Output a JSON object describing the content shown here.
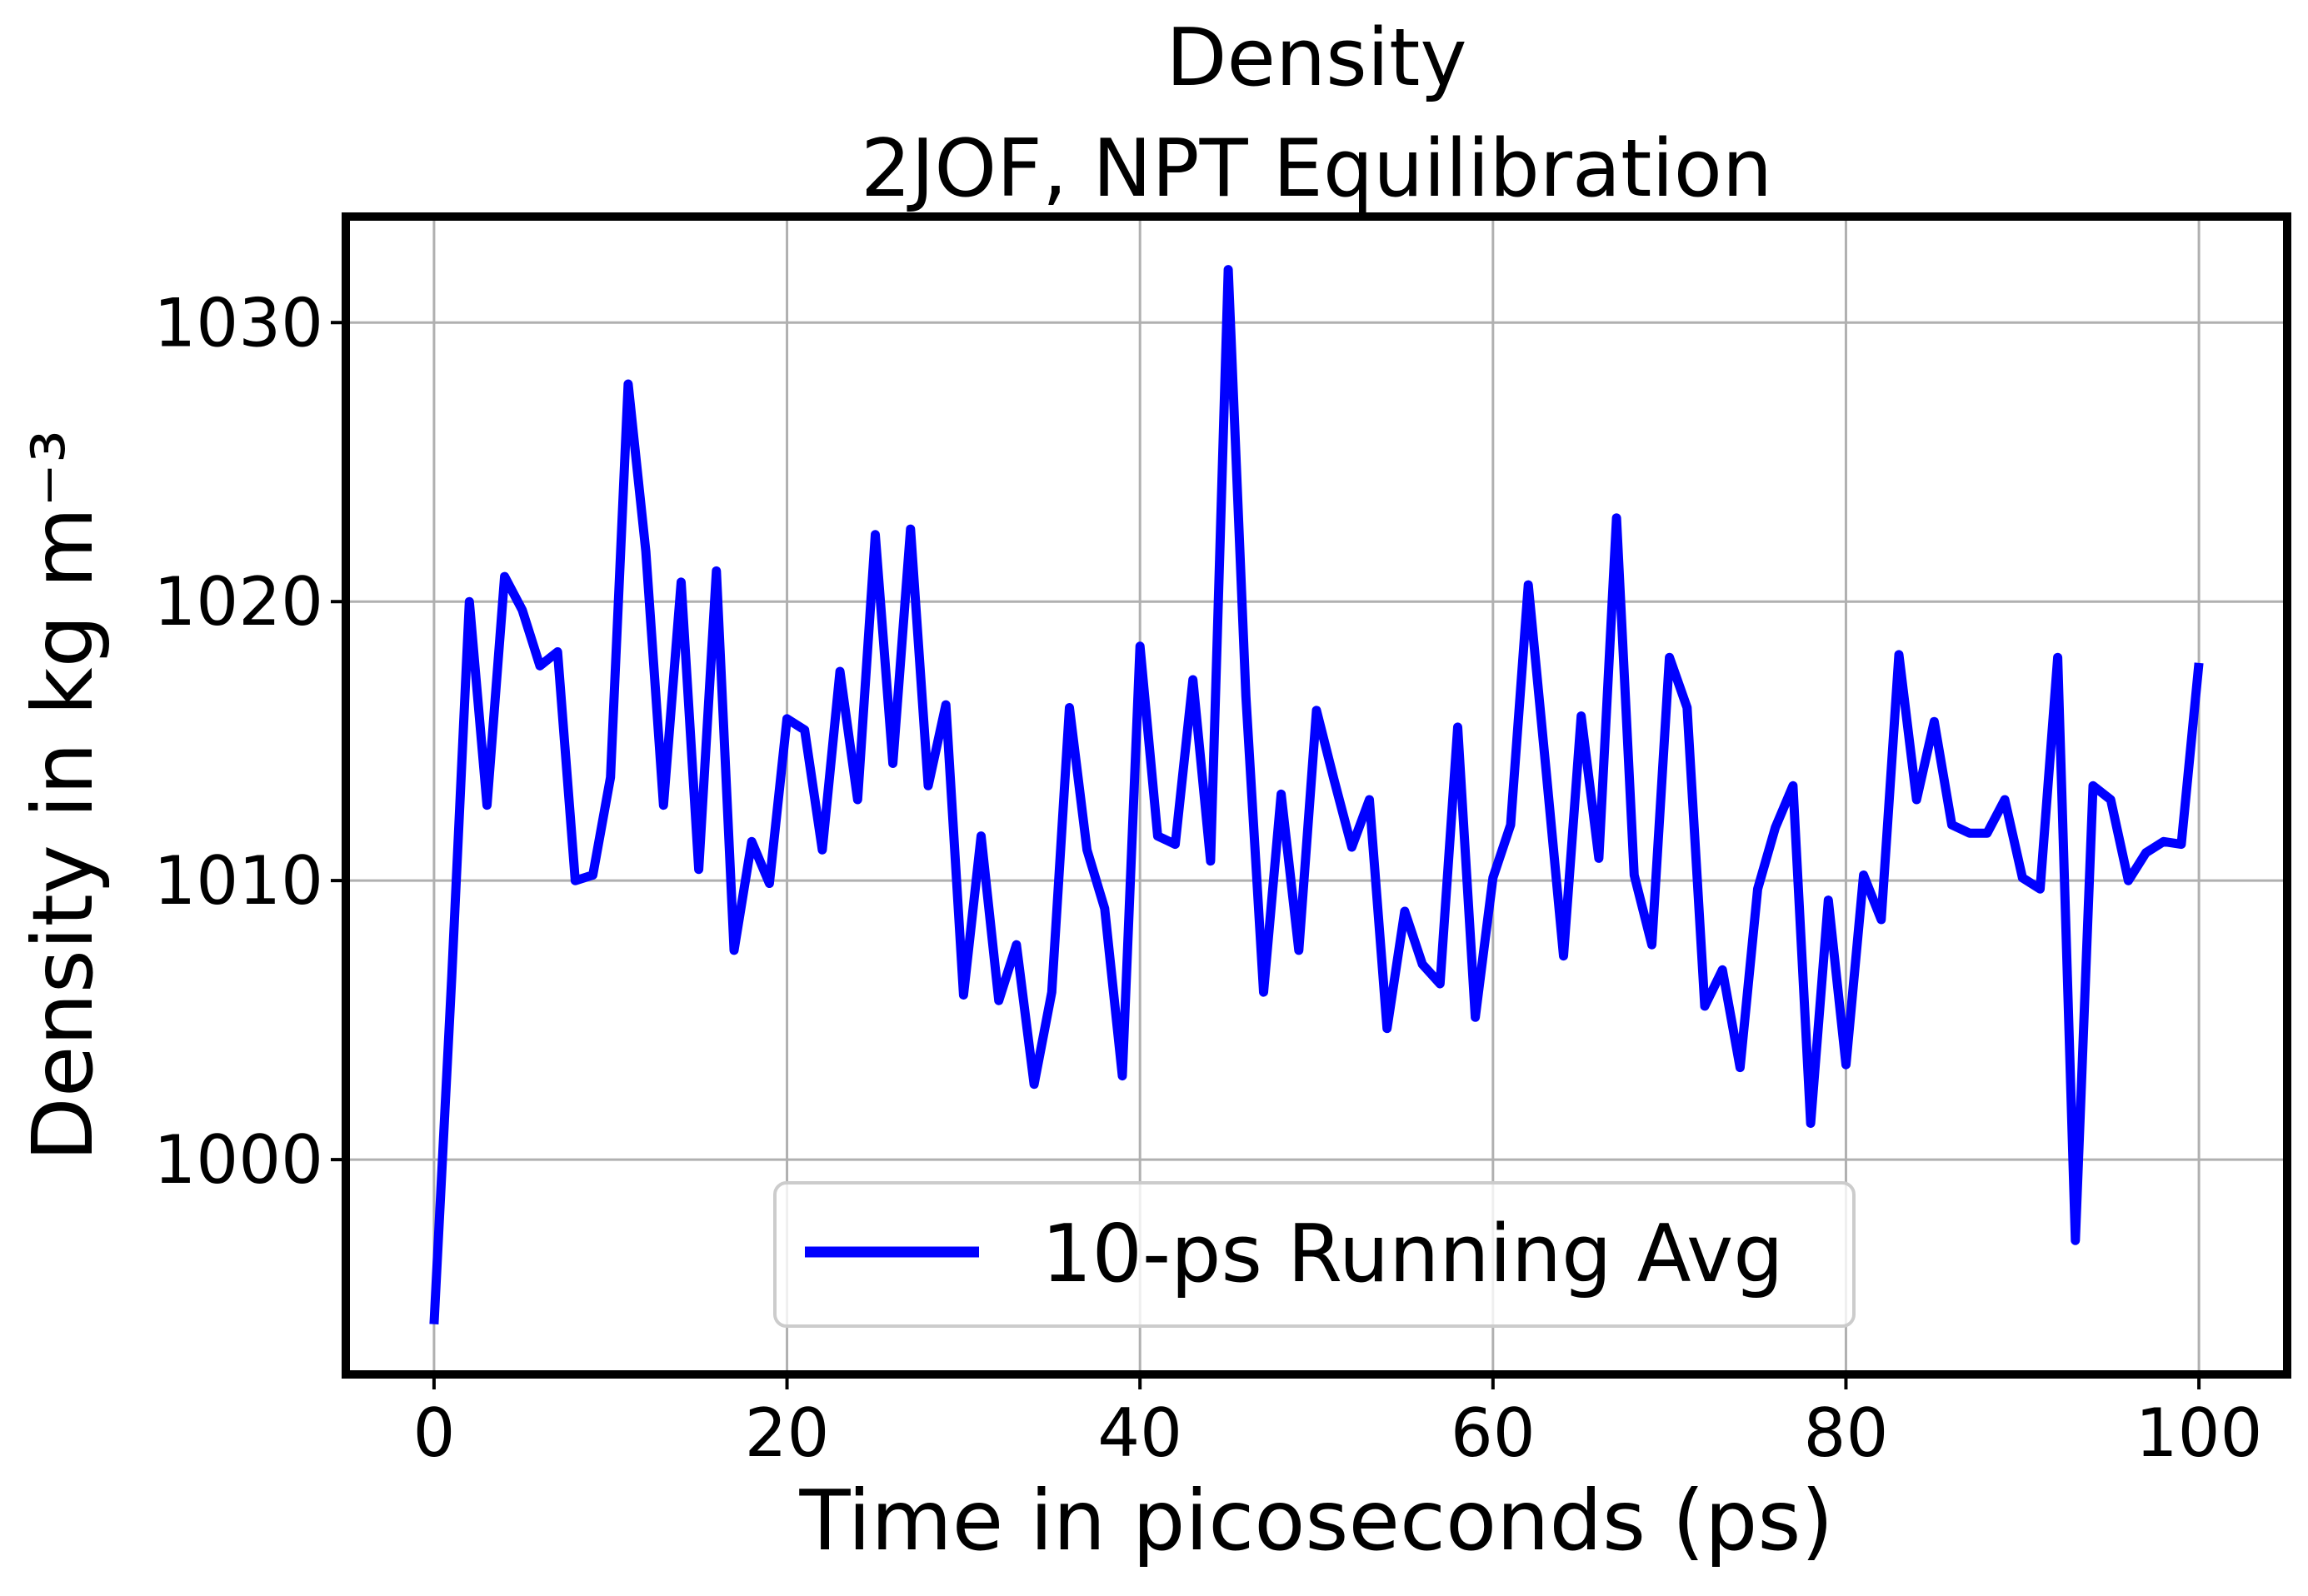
{
  "chart_data": {
    "type": "line",
    "title": "Density\n2JOF, NPT Equilibration",
    "title_lines": [
      "Density",
      "2JOF, NPT Equilibration"
    ],
    "xlabel": "Time in picoseconds (ps)",
    "ylabel": "Density in kg m⁻³",
    "xlim": [
      -5,
      105
    ],
    "ylim": [
      992.3,
      1033.8
    ],
    "xticks": [
      0,
      20,
      40,
      60,
      80,
      100
    ],
    "xtick_labels": [
      "0",
      "20",
      "40",
      "60",
      "80",
      "100"
    ],
    "yticks": [
      1000,
      1010,
      1020,
      1030
    ],
    "ytick_labels": [
      "1000",
      "1010",
      "1020",
      "1030"
    ],
    "grid": true,
    "legend_position": "lower center",
    "series": [
      {
        "name": "10-ps Running Avg",
        "color": "#0000ff",
        "x": [
          0,
          1,
          2,
          3,
          4,
          5,
          6,
          7,
          8,
          9,
          10,
          11,
          12,
          13,
          14,
          15,
          16,
          17,
          18,
          19,
          20,
          21,
          22,
          23,
          24,
          25,
          26,
          27,
          28,
          29,
          30,
          31,
          32,
          33,
          34,
          35,
          36,
          37,
          38,
          39,
          40,
          41,
          42,
          43,
          44,
          45,
          46,
          47,
          48,
          49,
          50,
          51,
          52,
          53,
          54,
          55,
          56,
          57,
          58,
          59,
          60,
          61,
          62,
          63,
          64,
          65,
          66,
          67,
          68,
          69,
          70,
          71,
          72,
          73,
          74,
          75,
          76,
          77,
          78,
          79,
          80,
          81,
          82,
          83,
          84,
          85,
          86,
          87,
          88,
          89,
          90,
          91,
          92,
          93,
          94,
          95,
          96,
          97,
          98,
          99,
          100
        ],
        "y": [
          994.1,
          1006.5,
          1020.0,
          1012.7,
          1020.9,
          1019.7,
          1017.7,
          1018.2,
          1010.0,
          1010.2,
          1013.7,
          1027.8,
          1021.8,
          1012.7,
          1020.7,
          1010.4,
          1021.1,
          1007.5,
          1011.4,
          1009.9,
          1015.8,
          1015.4,
          1011.1,
          1017.5,
          1012.9,
          1022.4,
          1014.2,
          1022.6,
          1013.4,
          1016.3,
          1005.9,
          1011.6,
          1005.7,
          1007.7,
          1002.7,
          1006.0,
          1016.2,
          1011.1,
          1009.0,
          1003.0,
          1018.4,
          1011.6,
          1011.3,
          1017.2,
          1010.7,
          1031.9,
          1016.6,
          1006.0,
          1013.1,
          1007.5,
          1016.1,
          1013.6,
          1011.2,
          1012.9,
          1004.7,
          1008.9,
          1007.0,
          1006.3,
          1015.5,
          1005.1,
          1010.1,
          1012.0,
          1020.6,
          1014.0,
          1007.3,
          1015.9,
          1010.8,
          1023.0,
          1010.2,
          1007.7,
          1018.0,
          1016.2,
          1005.5,
          1006.8,
          1003.3,
          1009.7,
          1011.9,
          1013.4,
          1001.3,
          1009.3,
          1003.4,
          1010.2,
          1008.6,
          1018.1,
          1012.9,
          1015.7,
          1012.0,
          1011.7,
          1011.7,
          1012.9,
          1010.1,
          1009.7,
          1018.0,
          997.1,
          1013.4,
          1012.9,
          1010.0,
          1011.0,
          1011.4,
          1011.3,
          1017.8
        ]
      }
    ]
  }
}
